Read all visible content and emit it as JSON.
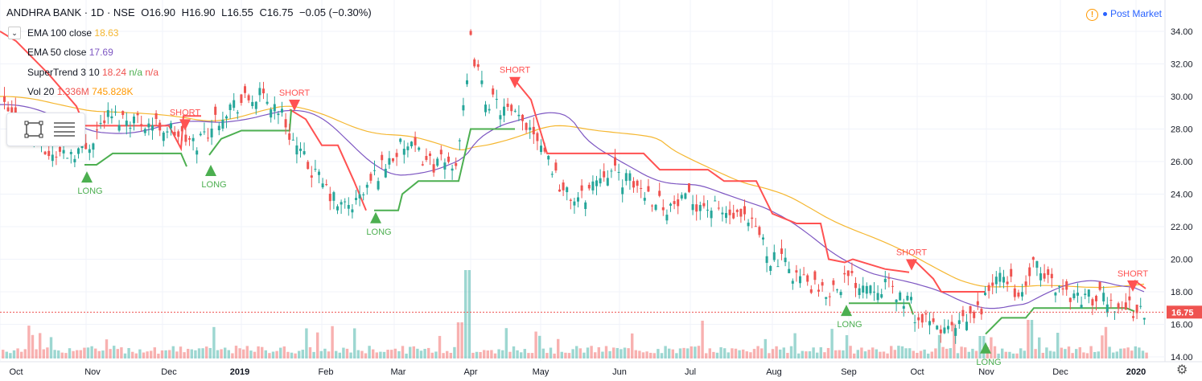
{
  "header": {
    "symbol": "ANDHRA BANK · 1D · NSE",
    "open": "O16.90",
    "high": "H16.90",
    "low": "L16.55",
    "close": "C16.75",
    "change": "−0.05 (−0.30%)"
  },
  "legend": {
    "ema100_label": "EMA 100 close",
    "ema100_value": "18.63",
    "ema50_label": "EMA 50 close",
    "ema50_value": "17.69",
    "supertrend_label": "SuperTrend 3 10",
    "supertrend_value": "18.24",
    "supertrend_na1": "n/a",
    "supertrend_na2": "n/a",
    "vol_label": "Vol 20",
    "vol_value": "1.336M",
    "vol_ma": "745.828K"
  },
  "post_market": {
    "label": "Post Market",
    "icon": "warning-icon"
  },
  "price_label": "16.75",
  "colors": {
    "up": "#26a69a",
    "down": "#ef5350",
    "ema100": "#f5b731",
    "ema50": "#7e57c2",
    "st_up": "#4caf50",
    "st_down": "#ff5252",
    "price_line": "#ef5350"
  },
  "chart_data": {
    "type": "candlestick",
    "x_ticks": [
      "Oct",
      "Nov",
      "Dec",
      "2019",
      "Feb",
      "Mar",
      "Apr",
      "May",
      "Jun",
      "Jul",
      "Aug",
      "Sep",
      "Oct",
      "Nov",
      "Dec",
      "2020"
    ],
    "y_ticks": [
      "14.00",
      "16.00",
      "18.00",
      "20.00",
      "22.00",
      "24.00",
      "26.00",
      "28.00",
      "30.00",
      "32.00",
      "34.00"
    ],
    "ylim": [
      14,
      35
    ],
    "last_price": 16.75,
    "signals": [
      {
        "label": "LONG",
        "month": "Nov",
        "price": 25.5
      },
      {
        "label": "SHORT",
        "month": "Dec",
        "price": 28.6
      },
      {
        "label": "LONG",
        "month": "Dec",
        "price": 25.9
      },
      {
        "label": "SHORT",
        "month": "2019",
        "price": 29.8
      },
      {
        "label": "LONG",
        "month": "Feb",
        "price": 23.0
      },
      {
        "label": "SHORT",
        "month": "Apr",
        "price": 31.2
      },
      {
        "label": "LONG",
        "month": "Sep",
        "price": 17.3
      },
      {
        "label": "SHORT",
        "month": "Oct",
        "price": 20.0
      },
      {
        "label": "LONG",
        "month": "Nov",
        "price": 15.0
      },
      {
        "label": "SHORT",
        "month": "2020",
        "price": 18.7
      }
    ],
    "close_path": [
      [
        "Oct",
        28.3
      ],
      [
        "Nov",
        26.2
      ],
      [
        "Dec",
        28.0
      ],
      [
        "2019",
        29.6
      ],
      [
        "Feb",
        23.8
      ],
      [
        "Mar",
        26.8
      ],
      [
        "Apr",
        32.2
      ],
      [
        "May",
        24.6
      ],
      [
        "Jun",
        25.2
      ],
      [
        "Jul",
        23.8
      ],
      [
        "Aug",
        20.2
      ],
      [
        "Sep",
        18.6
      ],
      [
        "Oct",
        15.6
      ],
      [
        "Nov",
        17.8
      ],
      [
        "Dec",
        18.1
      ],
      [
        "2020",
        16.75
      ]
    ]
  }
}
